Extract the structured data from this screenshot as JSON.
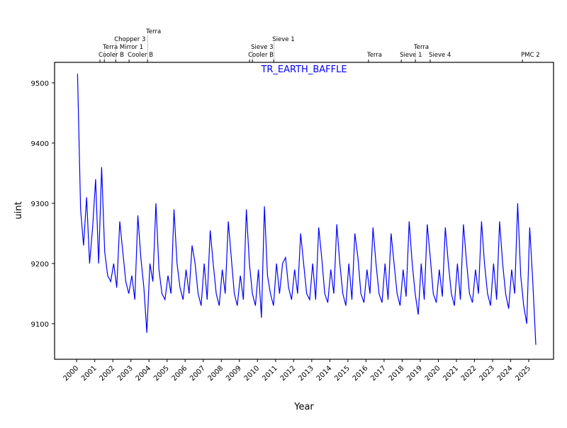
{
  "chart_data": {
    "type": "line",
    "title": "TR_EARTH_BAFFLE",
    "xlabel": "Year",
    "ylabel": "uint",
    "xlim": [
      1998.78,
      2026.37
    ],
    "ylim": [
      9041,
      9534
    ],
    "grid": false,
    "line_color": "#0000ff",
    "x_ticks": [
      2000,
      2001,
      2002,
      2003,
      2004,
      2005,
      2006,
      2007,
      2008,
      2009,
      2010,
      2011,
      2012,
      2013,
      2014,
      2015,
      2016,
      2017,
      2018,
      2019,
      2020,
      2021,
      2022,
      2023,
      2024,
      2025
    ],
    "x_tick_labels": [
      "2000",
      "2001",
      "2002",
      "2003",
      "2004",
      "2005",
      "2006",
      "2007",
      "2008",
      "2009",
      "2010",
      "2011",
      "2012",
      "2013",
      "2014",
      "2015",
      "2016",
      "2017",
      "2018",
      "2019",
      "2020",
      "2021",
      "2022",
      "2023",
      "2024",
      "2025"
    ],
    "y_ticks": [
      9100,
      9200,
      9300,
      9400,
      9500
    ],
    "y_tick_labels": [
      "9100",
      "9200",
      "9300",
      "9400",
      "9500"
    ],
    "events": [
      {
        "x": 2001.29,
        "label": "Cooler B"
      },
      {
        "x": 2001.53,
        "label": "Terra Mirror 1"
      },
      {
        "x": 2002.16,
        "label": "Chopper 3"
      },
      {
        "x": 2002.9,
        "label": "Cooler B"
      },
      {
        "x": 2003.92,
        "label": "Terra"
      },
      {
        "x": 2009.56,
        "label": "Cooler B"
      },
      {
        "x": 2009.72,
        "label": "Sieve 3"
      },
      {
        "x": 2010.9,
        "label": "Sieve 1"
      },
      {
        "x": 2016.14,
        "label": "Terra"
      },
      {
        "x": 2017.95,
        "label": "Sieve 1"
      },
      {
        "x": 2018.73,
        "label": "Terra"
      },
      {
        "x": 2019.55,
        "label": "Sieve 4"
      },
      {
        "x": 2024.65,
        "label": "PMC 2"
      }
    ],
    "series": [
      {
        "name": "TR_EARTH_BAFFLE",
        "x_start": 2000.05,
        "x_step": 0.1667,
        "values": [
          9515,
          9290,
          9230,
          9310,
          9200,
          9260,
          9340,
          9200,
          9360,
          9220,
          9180,
          9170,
          9200,
          9160,
          9270,
          9220,
          9170,
          9150,
          9180,
          9140,
          9280,
          9210,
          9160,
          9085,
          9200,
          9170,
          9300,
          9190,
          9150,
          9140,
          9180,
          9150,
          9290,
          9200,
          9160,
          9140,
          9190,
          9150,
          9230,
          9200,
          9150,
          9130,
          9200,
          9140,
          9255,
          9200,
          9150,
          9130,
          9190,
          9150,
          9270,
          9210,
          9150,
          9130,
          9180,
          9140,
          9290,
          9200,
          9150,
          9130,
          9190,
          9110,
          9295,
          9180,
          9150,
          9130,
          9200,
          9150,
          9200,
          9210,
          9160,
          9140,
          9190,
          9150,
          9250,
          9200,
          9150,
          9140,
          9200,
          9140,
          9260,
          9210,
          9150,
          9135,
          9190,
          9150,
          9265,
          9200,
          9150,
          9130,
          9200,
          9140,
          9250,
          9210,
          9150,
          9135,
          9190,
          9150,
          9260,
          9200,
          9150,
          9135,
          9200,
          9140,
          9250,
          9200,
          9150,
          9130,
          9190,
          9145,
          9270,
          9200,
          9150,
          9115,
          9200,
          9140,
          9265,
          9210,
          9150,
          9135,
          9190,
          9145,
          9260,
          9200,
          9150,
          9130,
          9200,
          9140,
          9265,
          9205,
          9150,
          9135,
          9190,
          9150,
          9270,
          9200,
          9150,
          9130,
          9200,
          9140,
          9270,
          9200,
          9150,
          9125,
          9190,
          9150,
          9300,
          9180,
          9130,
          9100,
          9260,
          9170,
          9065
        ]
      }
    ]
  }
}
